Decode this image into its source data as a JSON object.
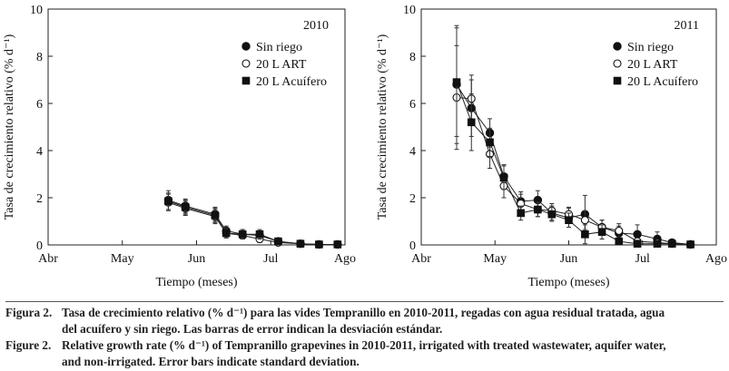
{
  "chart_data": [
    {
      "type": "line",
      "year_label": "2010",
      "xlabel": "Tiempo (meses)",
      "ylabel": "Tasa de crecimiento relativo (% d⁻¹)",
      "ylim": [
        0,
        10
      ],
      "yticks": [
        0,
        2,
        4,
        6,
        8,
        10
      ],
      "xlim": [
        0,
        4
      ],
      "xticks": [
        0,
        1,
        2,
        3,
        4
      ],
      "xticklabels": [
        "Abr",
        "May",
        "Jun",
        "Jul",
        "Ago"
      ],
      "series": [
        {
          "name": "Sin riego",
          "marker": "filled-circle",
          "x": [
            1.62,
            1.85,
            2.25,
            2.4,
            2.62,
            2.85,
            3.1,
            3.4,
            3.65,
            3.9
          ],
          "y": [
            1.9,
            1.65,
            1.3,
            0.6,
            0.45,
            0.4,
            0.15,
            0.05,
            0.02,
            0.02
          ],
          "err": [
            0.4,
            0.3,
            0.3,
            0.2,
            0.2,
            0.2,
            0.1,
            0.05,
            0.03,
            0.02
          ]
        },
        {
          "name": "20 L ART",
          "marker": "open-circle",
          "x": [
            1.62,
            1.85,
            2.25,
            2.4,
            2.62,
            2.85,
            3.1,
            3.4,
            3.65,
            3.9
          ],
          "y": [
            1.8,
            1.55,
            1.2,
            0.5,
            0.4,
            0.25,
            0.1,
            0.05,
            0.02,
            0.02
          ],
          "err": [
            0.35,
            0.3,
            0.3,
            0.2,
            0.15,
            0.15,
            0.1,
            0.05,
            0.03,
            0.02
          ]
        },
        {
          "name": "20 L Acuífero",
          "marker": "filled-square",
          "x": [
            1.62,
            1.85,
            2.25,
            2.4,
            2.62,
            2.85,
            3.1,
            3.4,
            3.65,
            3.9
          ],
          "y": [
            1.85,
            1.6,
            1.25,
            0.5,
            0.45,
            0.45,
            0.15,
            0.05,
            0.02,
            0.02
          ],
          "err": [
            0.35,
            0.3,
            0.3,
            0.2,
            0.2,
            0.2,
            0.1,
            0.05,
            0.03,
            0.02
          ]
        }
      ]
    },
    {
      "type": "line",
      "year_label": "2011",
      "xlabel": "Tiempo (meses)",
      "ylabel": "Tasa de crecimiento relativo (% d⁻¹)",
      "ylim": [
        0,
        10
      ],
      "yticks": [
        0,
        2,
        4,
        6,
        8,
        10
      ],
      "xlim": [
        0,
        4
      ],
      "xticks": [
        0,
        1,
        2,
        3,
        4
      ],
      "xticklabels": [
        "Abr",
        "May",
        "Jun",
        "Jul",
        "Ago"
      ],
      "series": [
        {
          "name": "Sin riego",
          "marker": "filled-circle",
          "x": [
            0.48,
            0.68,
            0.93,
            1.12,
            1.35,
            1.58,
            1.77,
            2.0,
            2.22,
            2.45,
            2.68,
            2.93,
            3.2,
            3.4,
            3.65
          ],
          "y": [
            6.8,
            5.8,
            4.75,
            2.9,
            1.85,
            1.9,
            1.35,
            1.15,
            1.3,
            0.75,
            0.5,
            0.45,
            0.25,
            0.1,
            0.02
          ],
          "err": [
            2.5,
            1.2,
            0.6,
            0.5,
            0.4,
            0.4,
            0.3,
            0.4,
            0.8,
            0.3,
            0.3,
            0.4,
            0.3,
            0.1,
            0.03
          ]
        },
        {
          "name": "20 L ART",
          "marker": "open-circle",
          "x": [
            0.48,
            0.68,
            0.93,
            1.12,
            1.35,
            1.58,
            1.77,
            2.0,
            2.22,
            2.45,
            2.68,
            2.93,
            3.2,
            3.4,
            3.65
          ],
          "y": [
            6.25,
            6.2,
            3.85,
            2.5,
            1.75,
            1.5,
            1.45,
            1.3,
            1.05,
            0.75,
            0.6,
            0.15,
            0.1,
            0.05,
            0.02
          ],
          "err": [
            2.2,
            1.0,
            0.6,
            0.5,
            0.4,
            0.3,
            0.3,
            0.3,
            0.4,
            0.3,
            0.3,
            0.15,
            0.1,
            0.05,
            0.03
          ]
        },
        {
          "name": "20 L Acuífero",
          "marker": "filled-square",
          "x": [
            0.48,
            0.68,
            0.93,
            1.12,
            1.35,
            1.58,
            1.77,
            2.0,
            2.22,
            2.45,
            2.68,
            2.93,
            3.2,
            3.4,
            3.65
          ],
          "y": [
            6.9,
            5.2,
            4.35,
            2.85,
            1.35,
            1.5,
            1.3,
            1.05,
            0.45,
            0.55,
            0.15,
            0.05,
            0.05,
            0.05,
            0.02
          ],
          "err": [
            2.3,
            1.2,
            0.6,
            0.5,
            0.3,
            0.3,
            0.3,
            0.3,
            0.4,
            0.3,
            0.15,
            0.1,
            0.1,
            0.05,
            0.03
          ]
        }
      ]
    }
  ],
  "caption": {
    "es_number": "Figura 2.",
    "es_line1": "Tasa de crecimiento relativo (% d⁻¹) para las vides Tempranillo en 2010-2011, regadas con agua residual tratada, agua",
    "es_line2": "del acuífero y sin riego. Las barras de error indican la desviación estándar.",
    "en_number": "Figure 2.",
    "en_line1": "Relative growth rate (% d⁻¹) of Tempranillo grapevines in 2010-2011, irrigated with treated wastewater, aquifer water,",
    "en_line2": "and non-irrigated. Error bars indicate standard deviation."
  }
}
